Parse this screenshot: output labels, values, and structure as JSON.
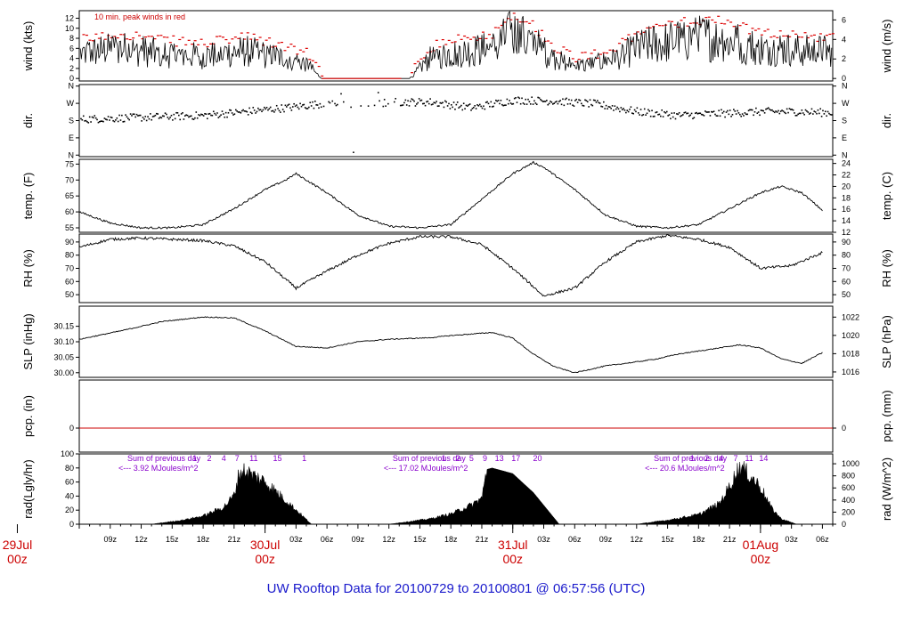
{
  "title": "UW Rooftop Data for 20100729  to  20100801 @ 06:57:56  (UTC)",
  "colors": {
    "title": "#1a1acc",
    "dates": "#cc0000",
    "peak": "#dd0000",
    "pcp": "#cc0000",
    "notes": "#8800cc",
    "line": "#000000"
  },
  "time_axis": {
    "hour_ticks": [
      "09z",
      "12z",
      "15z",
      "18z",
      "21z",
      "03z",
      "06z",
      "09z",
      "12z",
      "15z",
      "18z",
      "21z",
      "03z",
      "06z",
      "09z",
      "12z",
      "15z",
      "18z",
      "21z",
      "03z",
      "06z"
    ],
    "hour_tick_values": [
      9,
      12,
      15,
      18,
      21,
      27,
      30,
      33,
      36,
      39,
      42,
      45,
      51,
      54,
      57,
      60,
      63,
      66,
      69,
      75,
      78
    ],
    "day_labels": [
      {
        "date": "29Jul",
        "time": "00z",
        "t": 0
      },
      {
        "date": "30Jul",
        "time": "00z",
        "t": 24
      },
      {
        "date": "31Jul",
        "time": "00z",
        "t": 48
      },
      {
        "date": "01Aug",
        "time": "00z",
        "t": 72
      }
    ],
    "range": [
      6,
      79
    ]
  },
  "panels": {
    "wind": {
      "left_label": "wind (kts)",
      "right_label": "wind (m/s)",
      "left_ticks": [
        "0",
        "2",
        "4",
        "6",
        "8",
        "10",
        "12"
      ],
      "left_values": [
        0,
        2,
        4,
        6,
        8,
        10,
        12
      ],
      "left_range": [
        -0.5,
        13.5
      ],
      "right_ticks": [
        "0",
        "2",
        "4",
        "6"
      ],
      "right_values": [
        0,
        2,
        4,
        6
      ],
      "note": "10 min. peak winds in red"
    },
    "dir": {
      "left_label": "dir.",
      "right_label": "dir.",
      "ticks": [
        "N",
        "E",
        "S",
        "W",
        "N"
      ],
      "values": [
        0,
        90,
        180,
        270,
        360
      ],
      "range": [
        0,
        360
      ]
    },
    "temp": {
      "left_label": "temp. (F)",
      "right_label": "temp. (C)",
      "left_ticks": [
        "55",
        "60",
        "65",
        "70",
        "75"
      ],
      "left_values": [
        55,
        60,
        65,
        70,
        75
      ],
      "left_range": [
        53.6,
        76.5
      ],
      "right_ticks": [
        "12",
        "14",
        "16",
        "18",
        "20",
        "22",
        "24"
      ],
      "right_values": [
        12,
        14,
        16,
        18,
        20,
        22,
        24
      ]
    },
    "rh": {
      "left_label": "RH (%)",
      "right_label": "RH (%)",
      "ticks": [
        "50",
        "60",
        "70",
        "80",
        "90"
      ],
      "values": [
        50,
        60,
        70,
        80,
        90
      ],
      "range": [
        44,
        96
      ]
    },
    "slp": {
      "left_label": "SLP (inHg)",
      "right_label": "SLP (hPa)",
      "left_ticks": [
        "30.00",
        "30.05",
        "30.10",
        "30.15"
      ],
      "left_values": [
        30.0,
        30.05,
        30.1,
        30.15
      ],
      "left_range": [
        29.985,
        30.215
      ],
      "right_ticks": [
        "1016",
        "1018",
        "1020",
        "1022"
      ],
      "right_values": [
        1016,
        1018,
        1020,
        1022
      ]
    },
    "pcp": {
      "left_label": "pcp. (in)",
      "right_label": "pcp. (mm)",
      "left_ticks": [
        "0"
      ],
      "right_ticks": [
        "0"
      ],
      "values": [
        0
      ],
      "range": [
        -0.5,
        1
      ]
    },
    "rad": {
      "left_label": "rad(Lgly/hr)",
      "right_label": "rad (W/m^2)",
      "left_ticks": [
        "0",
        "20",
        "40",
        "60",
        "80",
        "100"
      ],
      "left_values": [
        0,
        20,
        40,
        60,
        80,
        100
      ],
      "right_ticks": [
        "0",
        "200",
        "400",
        "600",
        "800",
        "1000"
      ],
      "right_values": [
        0,
        200,
        400,
        600,
        800,
        1000
      ],
      "left_range": [
        0,
        100
      ],
      "notes": [
        {
          "line1": "Sum of previous day",
          "line2": "<--- 3.92 MJoules/m^2",
          "t": 9.8
        },
        {
          "line1": "Sum of previous day",
          "line2": "<--- 17.02 MJoules/m^2",
          "t": 35.5
        },
        {
          "line1": "Sum of previous day",
          "line2": "<--- 20.6 MJoules/m^2",
          "t": 60.8
        }
      ],
      "uv_labels": [
        {
          "text": "1",
          "t": 17.2
        },
        {
          "text": "2",
          "t": 18.6
        },
        {
          "text": "4",
          "t": 20.0
        },
        {
          "text": "7",
          "t": 21.3
        },
        {
          "text": "11",
          "t": 22.9
        },
        {
          "text": "15",
          "t": 25.2
        },
        {
          "text": "1",
          "t": 27.8
        },
        {
          "text": "1",
          "t": 41.3
        },
        {
          "text": "2",
          "t": 42.7
        },
        {
          "text": "5",
          "t": 44.0
        },
        {
          "text": "9",
          "t": 45.3
        },
        {
          "text": "13",
          "t": 46.7
        },
        {
          "text": "17",
          "t": 48.3
        },
        {
          "text": "20",
          "t": 50.4
        },
        {
          "text": "1",
          "t": 65.4
        },
        {
          "text": "2",
          "t": 66.8
        },
        {
          "text": "4",
          "t": 68.2
        },
        {
          "text": "7",
          "t": 69.6
        },
        {
          "text": "11",
          "t": 70.9
        },
        {
          "text": "14",
          "t": 72.3
        }
      ]
    }
  },
  "chart_data": {
    "type": "line",
    "title": "UW Rooftop Data for 20100729  to  20100801 @ 06:57:56  (UTC)",
    "x_unit": "hours since 29Jul 00z",
    "series": [
      {
        "name": "wind (kts)",
        "x": [
          6,
          10,
          14,
          18,
          22,
          26,
          28,
          29.5,
          31,
          33,
          36,
          38,
          40,
          42,
          44,
          46,
          48,
          50,
          52,
          54,
          56,
          58,
          60,
          62,
          64,
          66,
          68,
          70,
          72,
          74,
          76,
          78
        ],
        "values": [
          5,
          6,
          5,
          4.5,
          5.5,
          4,
          3,
          0,
          0,
          0,
          0,
          0,
          4,
          5,
          5.5,
          6,
          9,
          7,
          4,
          2.5,
          3,
          4,
          6,
          7,
          7.5,
          8,
          8,
          7,
          6,
          6,
          5.5,
          5.5
        ]
      },
      {
        "name": "dir.",
        "x": [
          6,
          12,
          18,
          22,
          26,
          30,
          32,
          34,
          36,
          40,
          44,
          48,
          52,
          56,
          60,
          64,
          68,
          72,
          76,
          78
        ],
        "values": [
          190,
          200,
          210,
          230,
          250,
          275,
          270,
          260,
          280,
          280,
          250,
          290,
          285,
          270,
          230,
          210,
          220,
          230,
          230,
          225
        ]
      },
      {
        "name": "temp. (F)",
        "x": [
          6,
          9,
          12,
          15,
          18,
          21,
          24,
          26,
          27,
          30,
          33,
          36,
          39,
          42,
          45,
          48,
          50,
          51,
          54,
          57,
          60,
          63,
          66,
          69,
          72,
          74,
          76,
          78
        ],
        "values": [
          60,
          56.5,
          55,
          55,
          56,
          61,
          67,
          70,
          72,
          66,
          59,
          55.5,
          55,
          56,
          64,
          72,
          75.5,
          74,
          67,
          59,
          55.5,
          55,
          56,
          61,
          66,
          68,
          66,
          60.5
        ]
      },
      {
        "name": "RH (%)",
        "x": [
          6,
          9,
          12,
          15,
          18,
          21,
          24,
          27,
          30,
          33,
          36,
          39,
          42,
          45,
          48,
          51,
          54,
          57,
          60,
          63,
          66,
          69,
          72,
          75,
          78
        ],
        "values": [
          86,
          92,
          93,
          92,
          91,
          87,
          75,
          55,
          68,
          80,
          89,
          94,
          94,
          88,
          70,
          49,
          55,
          75,
          90,
          95,
          92,
          86,
          70,
          72,
          82
        ]
      },
      {
        "name": "SLP (inHg)",
        "x": [
          6,
          10,
          14,
          18,
          21,
          24,
          27,
          30,
          33,
          36,
          40,
          42,
          44,
          46,
          48,
          50,
          52,
          54,
          57,
          60,
          62,
          64,
          67,
          70,
          72,
          74,
          76,
          78
        ],
        "values": [
          30.108,
          30.135,
          30.165,
          30.18,
          30.177,
          30.135,
          30.085,
          30.08,
          30.1,
          30.108,
          30.113,
          30.12,
          30.125,
          30.13,
          30.112,
          30.06,
          30.02,
          30.0,
          30.022,
          30.035,
          30.045,
          30.06,
          30.075,
          30.09,
          30.08,
          30.045,
          30.03,
          30.065
        ]
      },
      {
        "name": "pcp. (in)",
        "x": [
          6,
          79
        ],
        "values": [
          0,
          0
        ]
      },
      {
        "name": "rad(Lgly/hr)",
        "x": [
          13,
          16,
          18,
          20,
          21,
          21.5,
          22,
          24,
          26,
          28.5
        ],
        "values": [
          0,
          6,
          12,
          25,
          42,
          75,
          78,
          62,
          35,
          0
        ]
      },
      {
        "name": "rad(Lgly/hr)",
        "x": [
          36,
          40,
          42,
          44,
          45,
          45.5,
          46,
          48,
          50,
          52.5
        ],
        "values": [
          0,
          8,
          15,
          28,
          38,
          78,
          80,
          72,
          45,
          0
        ]
      },
      {
        "name": "rad(Lgly/hr)",
        "x": [
          60,
          63,
          66,
          68,
          69,
          70,
          71,
          72,
          73,
          74,
          75.5
        ],
        "values": [
          0,
          6,
          14,
          30,
          55,
          85,
          70,
          55,
          25,
          8,
          0
        ]
      }
    ]
  }
}
